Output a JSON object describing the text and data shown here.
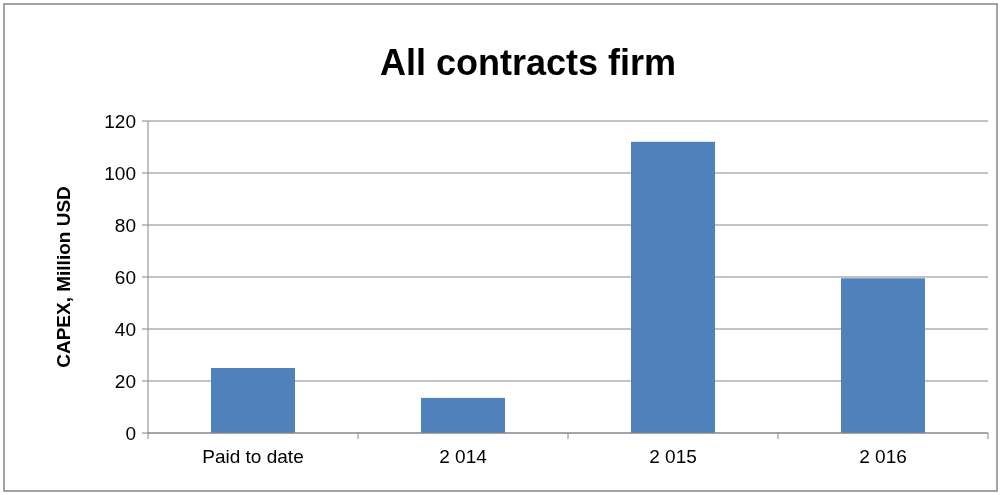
{
  "chart_data": {
    "type": "bar",
    "title": "All contracts firm",
    "ylabel": "CAPEX, Million USD",
    "categories": [
      "Paid to date",
      "2 014",
      "2 015",
      "2 016"
    ],
    "values": [
      25,
      13.5,
      112,
      59.5
    ],
    "color": "#4f81bd",
    "ylim": [
      0,
      120
    ],
    "yticks": [
      0,
      20,
      40,
      60,
      80,
      100,
      120
    ],
    "grid": "y"
  }
}
